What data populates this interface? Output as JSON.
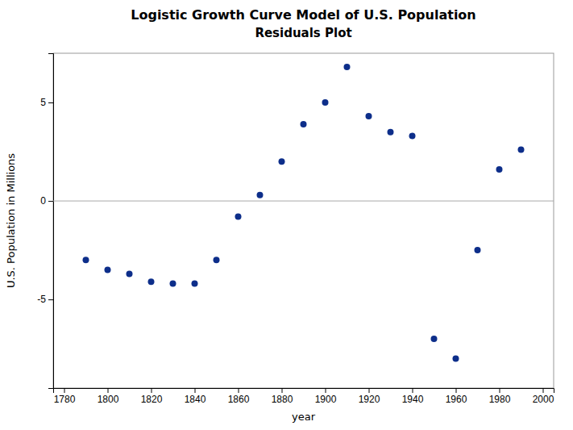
{
  "chart_data": {
    "type": "scatter",
    "title": "Logistic Growth Curve Model of U.S. Population",
    "subtitle": "Residuals Plot",
    "xlabel": "year",
    "ylabel": "U.S. Population in Millions",
    "x": [
      1790,
      1800,
      1810,
      1820,
      1830,
      1840,
      1850,
      1860,
      1870,
      1880,
      1890,
      1900,
      1910,
      1920,
      1930,
      1940,
      1950,
      1960,
      1970,
      1980,
      1990
    ],
    "values": [
      -3.0,
      -3.5,
      -3.7,
      -4.1,
      -4.2,
      -4.2,
      -3.0,
      -0.8,
      0.3,
      2.0,
      3.9,
      5.0,
      6.8,
      4.3,
      3.5,
      3.3,
      -7.0,
      -8.0,
      -2.5,
      1.6,
      2.6
    ],
    "color": "#0d2e8a",
    "xlim": [
      1775,
      2005
    ],
    "ylim": [
      -9.5,
      7.5
    ],
    "xticks": [
      1780,
      1800,
      1820,
      1840,
      1860,
      1880,
      1900,
      1920,
      1940,
      1960,
      1980,
      2000
    ],
    "yticks": [
      -5,
      0,
      5
    ],
    "grid": false,
    "reference_lines": [
      {
        "y": 0,
        "color": "#aaaaaa"
      }
    ]
  }
}
